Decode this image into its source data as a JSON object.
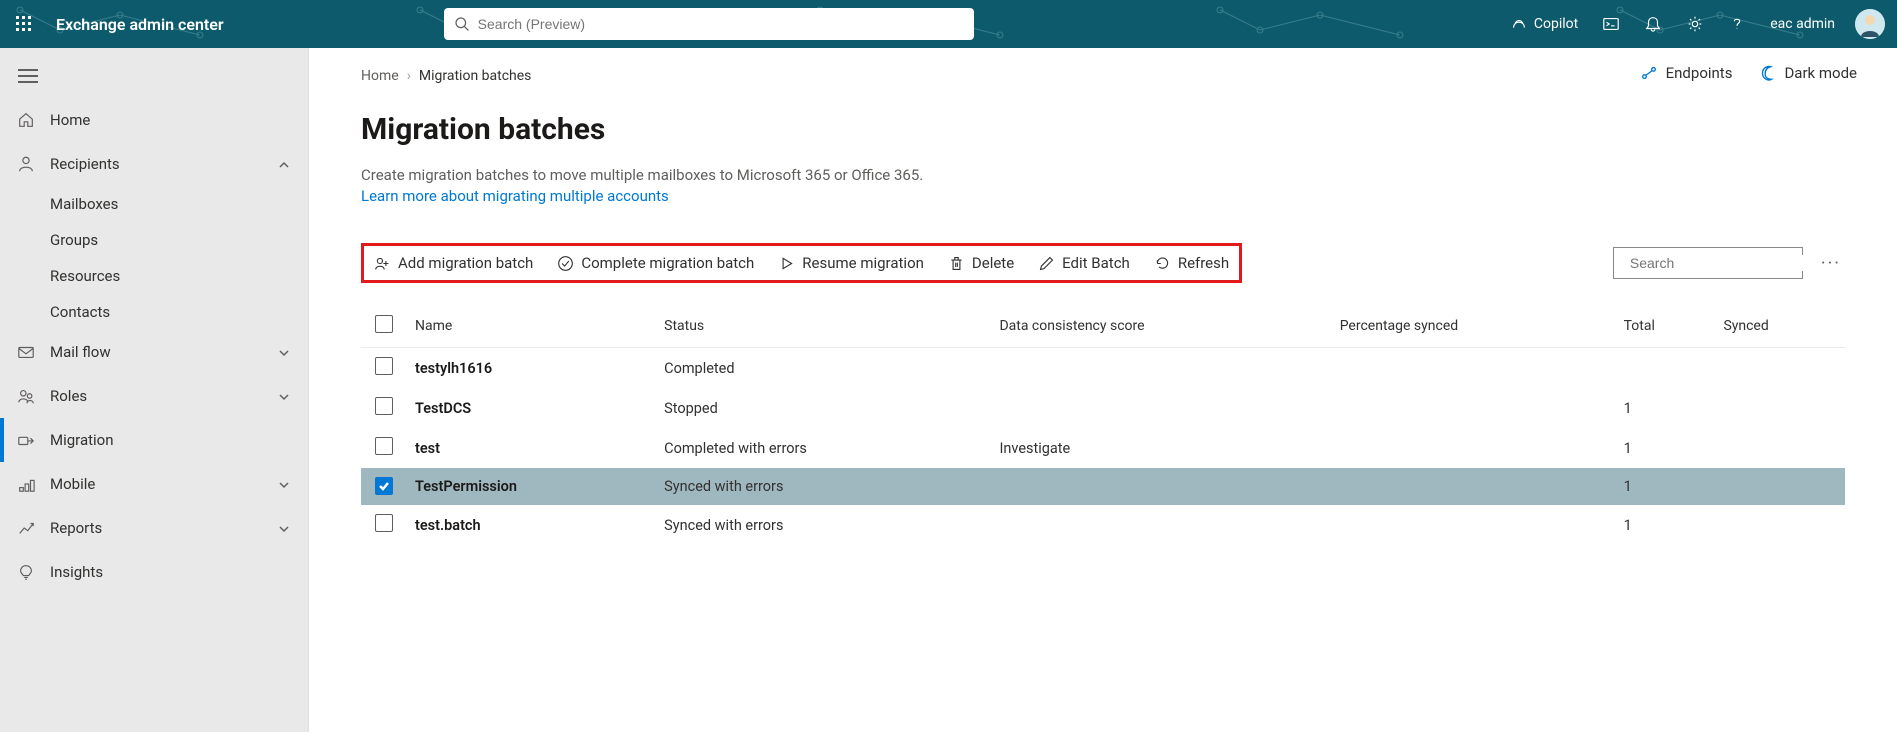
{
  "brand": "Exchange admin center",
  "search": {
    "placeholder": "Search (Preview)"
  },
  "toprightCopilot": "Copilot",
  "user": {
    "name": "eac admin"
  },
  "sidebar": {
    "home": "Home",
    "recipients": "Recipients",
    "recipients_items": {
      "mailboxes": "Mailboxes",
      "groups": "Groups",
      "resources": "Resources",
      "contacts": "Contacts"
    },
    "mailflow": "Mail flow",
    "roles": "Roles",
    "migration": "Migration",
    "mobile": "Mobile",
    "reports": "Reports",
    "insights": "Insights"
  },
  "breadcrumb": {
    "home": "Home",
    "current": "Migration batches"
  },
  "topactions": {
    "endpoints": "Endpoints",
    "darkmode": "Dark mode"
  },
  "page": {
    "title": "Migration batches",
    "desc": "Create migration batches to move multiple mailboxes to Microsoft 365 or Office 365.",
    "learn": "Learn more about migrating multiple accounts"
  },
  "cmds": {
    "add": "Add migration batch",
    "complete": "Complete migration batch",
    "resume": "Resume migration",
    "delete": "Delete",
    "edit": "Edit Batch",
    "refresh": "Refresh"
  },
  "tablesearch": {
    "placeholder": "Search"
  },
  "cols": {
    "name": "Name",
    "status": "Status",
    "dcs": "Data consistency score",
    "pct": "Percentage synced",
    "total": "Total",
    "synced": "Synced"
  },
  "rows": [
    {
      "name": "testylh1616",
      "status": "Completed",
      "dcs": "",
      "pct": "",
      "total": "",
      "synced": "",
      "checked": false
    },
    {
      "name": "TestDCS",
      "status": "Stopped",
      "dcs": "",
      "pct": "",
      "total": "1",
      "synced": "",
      "checked": false
    },
    {
      "name": "test",
      "status": "Completed with errors",
      "dcs": "Investigate",
      "pct": "",
      "total": "1",
      "synced": "",
      "checked": false
    },
    {
      "name": "TestPermission",
      "status": "Synced with errors",
      "dcs": "",
      "pct": "",
      "total": "1",
      "synced": "",
      "checked": true
    },
    {
      "name": "test.batch",
      "status": "Synced with errors",
      "dcs": "",
      "pct": "",
      "total": "1",
      "synced": "",
      "checked": false
    }
  ]
}
